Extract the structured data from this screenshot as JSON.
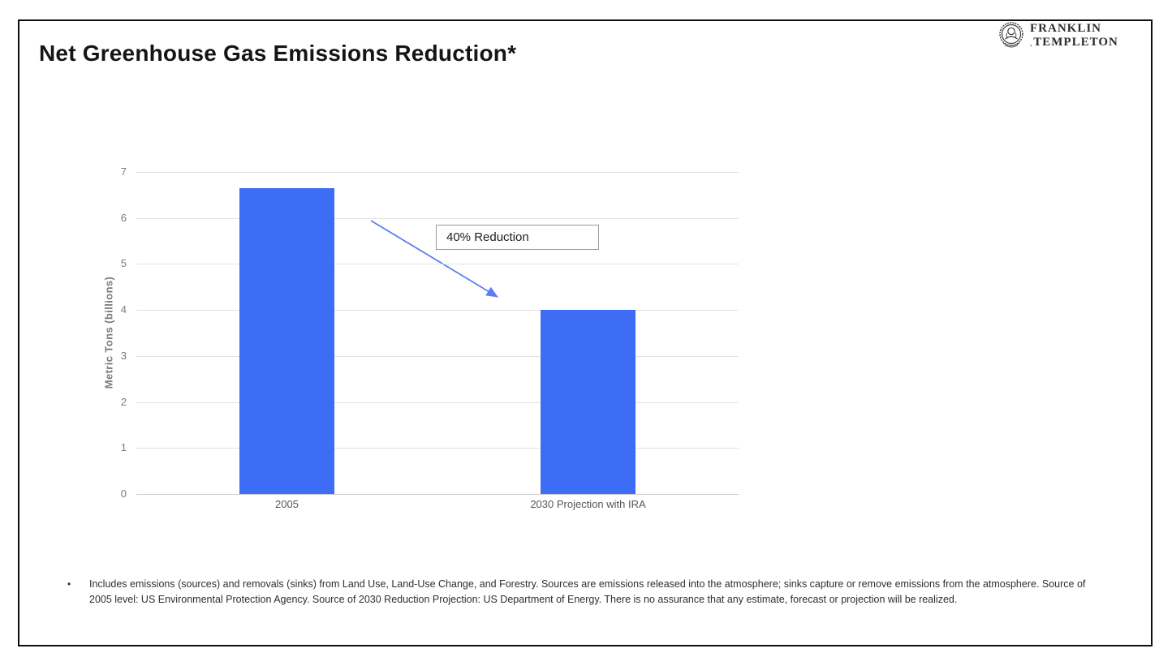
{
  "header": {
    "title": "Net Greenhouse Gas Emissions Reduction*",
    "logo": {
      "line1": "FRANKLIN",
      "line2": "TEMPLETON",
      "reg_mark": "."
    }
  },
  "chart_data": {
    "type": "bar",
    "title": "",
    "categories": [
      "2005",
      "2030 Projection with IRA"
    ],
    "values": [
      6.65,
      4.0
    ],
    "xlabel": "",
    "ylabel": "Metric Tons (billions)",
    "ylim": [
      0,
      7
    ],
    "yticks": [
      0,
      1,
      2,
      3,
      4,
      5,
      6,
      7
    ],
    "grid": true,
    "legend": "none",
    "bar_color": "#3d6cf5",
    "annotation": {
      "text": "40% Reduction",
      "arrow_color": "#5b7ff2"
    }
  },
  "footnote": {
    "bullet": "•",
    "text": "Includes emissions (sources) and removals (sinks) from Land Use, Land-Use Change, and Forestry. Sources are emissions released into the atmosphere; sinks capture or remove emissions from the atmosphere. Source of 2005 level: US Environmental Protection Agency. Source of 2030 Reduction Projection: US Department of Energy. There is no assurance that any estimate, forecast or projection will be realized."
  }
}
